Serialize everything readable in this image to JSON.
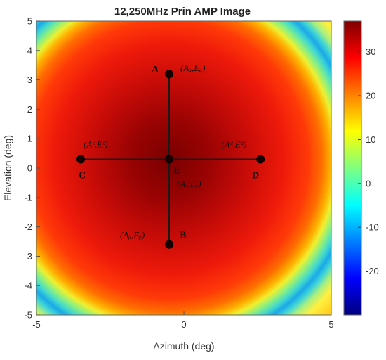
{
  "chart_data": {
    "type": "heatmap",
    "title": "12,250MHz Prin AMP Image",
    "xlabel": "Azimuth (deg)",
    "ylabel": "Elevation (deg)",
    "xlim": [
      -5,
      5
    ],
    "ylim": [
      -5,
      5
    ],
    "x_ticks": [
      "-5",
      "0",
      "5"
    ],
    "y_ticks": [
      "-5",
      "-4",
      "-3",
      "-2",
      "-1",
      "0",
      "1",
      "2",
      "3",
      "4",
      "5"
    ],
    "colorbar": {
      "ticks": [
        "-20",
        "-10",
        "0",
        "10",
        "20",
        "30"
      ],
      "range": [
        -30,
        37
      ],
      "colormap": "jet"
    },
    "peak": {
      "azimuth": -0.5,
      "elevation": 0.3,
      "value": 37
    },
    "points": [
      {
        "letter": "A",
        "label": "(Aₐ,Eₐ)",
        "azimuth": -0.5,
        "elevation": 3.2
      },
      {
        "letter": "B",
        "label": "(Aᵦ,Eᵦ)",
        "azimuth": -0.5,
        "elevation": -2.6
      },
      {
        "letter": "C",
        "label": "(Aᶜ,Eᶜ)",
        "azimuth": -3.5,
        "elevation": 0.3
      },
      {
        "letter": "D",
        "label": "(Aᵈ,Eᵈ)",
        "azimuth": 2.6,
        "elevation": 0.3
      },
      {
        "letter": "E",
        "label": "(Aₑ,Eₑ)",
        "azimuth": -0.5,
        "elevation": 0.3
      }
    ]
  }
}
